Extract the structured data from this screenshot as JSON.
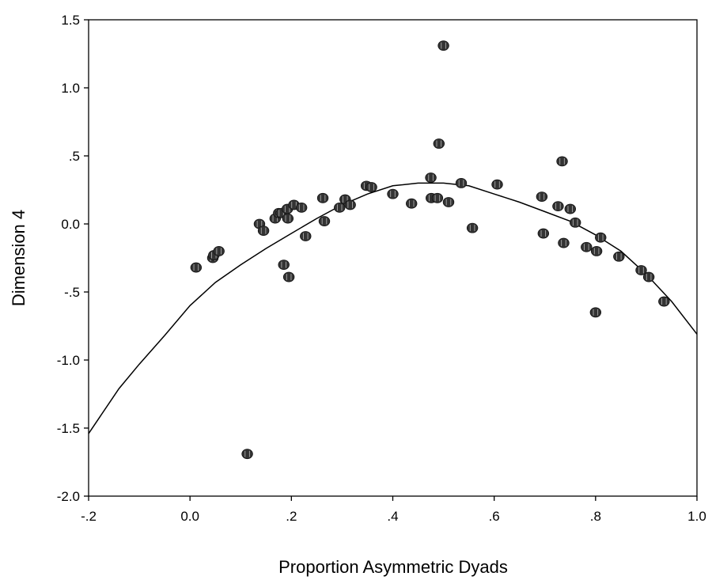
{
  "chart_data": {
    "type": "scatter",
    "title": "",
    "xlabel": "Proportion Asymmetric Dyads",
    "ylabel": "Dimension 4",
    "xlim": [
      -0.2,
      1.0
    ],
    "ylim": [
      -2.0,
      1.5
    ],
    "x_ticks": [
      -0.2,
      0.0,
      0.2,
      0.4,
      0.6,
      0.8,
      1.0
    ],
    "x_tick_labels": [
      "-.2",
      "0.0",
      ".2",
      ".4",
      ".6",
      ".8",
      "1.0"
    ],
    "y_ticks": [
      -2.0,
      -1.5,
      -1.0,
      -0.5,
      0.0,
      0.5,
      1.0,
      1.5
    ],
    "y_tick_labels": [
      "-2.0",
      "-1.5",
      "-1.0",
      "-.5",
      "0.0",
      ".5",
      "1.0",
      "1.5"
    ],
    "grid": false,
    "legend": "none",
    "marker_color": "#333333",
    "line_color": "#000000",
    "points": [
      {
        "x": 0.012,
        "y": -0.32
      },
      {
        "x": 0.045,
        "y": -0.25
      },
      {
        "x": 0.047,
        "y": -0.23
      },
      {
        "x": 0.057,
        "y": -0.2
      },
      {
        "x": 0.113,
        "y": -1.69
      },
      {
        "x": 0.137,
        "y": 0.0
      },
      {
        "x": 0.145,
        "y": -0.05
      },
      {
        "x": 0.168,
        "y": 0.04
      },
      {
        "x": 0.175,
        "y": 0.08
      },
      {
        "x": 0.18,
        "y": 0.08
      },
      {
        "x": 0.185,
        "y": -0.3
      },
      {
        "x": 0.192,
        "y": 0.11
      },
      {
        "x": 0.193,
        "y": 0.04
      },
      {
        "x": 0.195,
        "y": -0.39
      },
      {
        "x": 0.205,
        "y": 0.14
      },
      {
        "x": 0.22,
        "y": 0.12
      },
      {
        "x": 0.228,
        "y": -0.09
      },
      {
        "x": 0.262,
        "y": 0.19
      },
      {
        "x": 0.265,
        "y": 0.02
      },
      {
        "x": 0.295,
        "y": 0.12
      },
      {
        "x": 0.306,
        "y": 0.18
      },
      {
        "x": 0.316,
        "y": 0.14
      },
      {
        "x": 0.348,
        "y": 0.28
      },
      {
        "x": 0.358,
        "y": 0.27
      },
      {
        "x": 0.4,
        "y": 0.22
      },
      {
        "x": 0.437,
        "y": 0.15
      },
      {
        "x": 0.475,
        "y": 0.34
      },
      {
        "x": 0.476,
        "y": 0.19
      },
      {
        "x": 0.488,
        "y": 0.19
      },
      {
        "x": 0.491,
        "y": 0.59
      },
      {
        "x": 0.5,
        "y": 1.31
      },
      {
        "x": 0.51,
        "y": 0.16
      },
      {
        "x": 0.535,
        "y": 0.3
      },
      {
        "x": 0.557,
        "y": -0.03
      },
      {
        "x": 0.606,
        "y": 0.29
      },
      {
        "x": 0.694,
        "y": 0.2
      },
      {
        "x": 0.697,
        "y": -0.07
      },
      {
        "x": 0.726,
        "y": 0.13
      },
      {
        "x": 0.734,
        "y": 0.46
      },
      {
        "x": 0.737,
        "y": -0.14
      },
      {
        "x": 0.75,
        "y": 0.11
      },
      {
        "x": 0.76,
        "y": 0.01
      },
      {
        "x": 0.782,
        "y": -0.17
      },
      {
        "x": 0.8,
        "y": -0.65
      },
      {
        "x": 0.802,
        "y": -0.2
      },
      {
        "x": 0.81,
        "y": -0.1
      },
      {
        "x": 0.846,
        "y": -0.24
      },
      {
        "x": 0.89,
        "y": -0.34
      },
      {
        "x": 0.905,
        "y": -0.39
      },
      {
        "x": 0.935,
        "y": -0.57
      }
    ],
    "fit_line": {
      "type": "quadratic",
      "x": [
        -0.2,
        -0.14,
        -0.1,
        -0.05,
        0.0,
        0.05,
        0.1,
        0.15,
        0.2,
        0.25,
        0.3,
        0.35,
        0.4,
        0.45,
        0.5,
        0.55,
        0.6,
        0.65,
        0.7,
        0.75,
        0.8,
        0.85,
        0.9,
        0.95,
        1.0
      ],
      "y": [
        -1.54,
        -1.21,
        -1.03,
        -0.82,
        -0.6,
        -0.43,
        -0.3,
        -0.18,
        -0.07,
        0.04,
        0.14,
        0.22,
        0.28,
        0.3,
        0.3,
        0.28,
        0.22,
        0.16,
        0.09,
        0.02,
        -0.08,
        -0.2,
        -0.37,
        -0.57,
        -0.81
      ]
    }
  }
}
